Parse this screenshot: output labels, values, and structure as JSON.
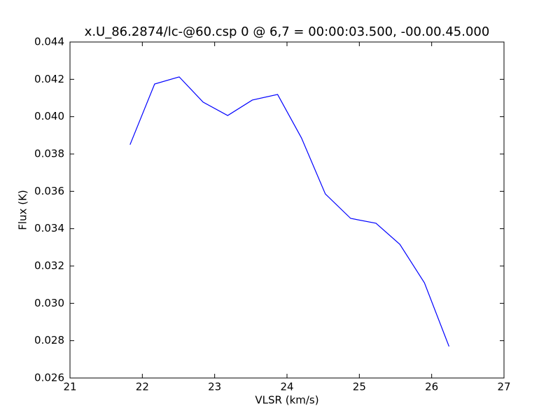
{
  "chart_data": {
    "type": "line",
    "title": "x.U_86.2874/lc-@60.csp 0 @ 6,7 = 00:00:03.500, -00.00.45.000",
    "x_label": "VLSR (km/s)",
    "y_label": "Flux (K)",
    "x": [
      21.83,
      22.17,
      22.51,
      22.84,
      23.18,
      23.52,
      23.87,
      24.2,
      24.53,
      24.88,
      25.23,
      25.56,
      25.9,
      26.24
    ],
    "series": [
      {
        "color": "#0000ff",
        "values": [
          0.0385,
          0.04175,
          0.04213,
          0.04078,
          0.04006,
          0.04089,
          0.04119,
          0.03886,
          0.03586,
          0.03455,
          0.03429,
          0.03316,
          0.0311,
          0.02769
        ]
      }
    ],
    "xlim": [
      21,
      27
    ],
    "xticks": [
      21,
      22,
      23,
      24,
      25,
      26,
      27
    ],
    "ylim": [
      0.026,
      0.044
    ],
    "yticks": [
      0.026,
      0.028,
      {
        "value": 0.03,
        "label": "0.030"
      },
      0.032,
      0.034,
      0.036,
      0.038,
      {
        "value": 0.04,
        "label": "0.040"
      },
      0.042,
      0.044
    ]
  }
}
